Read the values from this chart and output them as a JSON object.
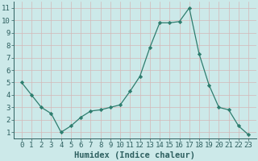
{
  "x": [
    0,
    1,
    2,
    3,
    4,
    5,
    6,
    7,
    8,
    9,
    10,
    11,
    12,
    13,
    14,
    15,
    16,
    17,
    18,
    19,
    20,
    21,
    22,
    23
  ],
  "y": [
    5.0,
    4.0,
    3.0,
    2.5,
    1.0,
    1.5,
    2.2,
    2.7,
    2.8,
    3.0,
    3.2,
    4.3,
    5.5,
    7.8,
    9.8,
    9.8,
    9.9,
    11.0,
    7.3,
    4.8,
    3.0,
    2.8,
    1.5,
    0.8
  ],
  "xlabel": "Humidex (Indice chaleur)",
  "ylim": [
    0.5,
    11.5
  ],
  "yticks": [
    1,
    2,
    3,
    4,
    5,
    6,
    7,
    8,
    9,
    10,
    11
  ],
  "xticks": [
    0,
    1,
    2,
    3,
    4,
    5,
    6,
    7,
    8,
    9,
    10,
    11,
    12,
    13,
    14,
    15,
    16,
    17,
    18,
    19,
    20,
    21,
    22,
    23
  ],
  "line_color": "#2e7d6e",
  "marker": "D",
  "marker_size": 2.2,
  "bg_color": "#cce9e9",
  "grid_color_major": "#b0c8c8",
  "grid_color_minor": "#d4b8b8",
  "xlabel_fontsize": 7.5,
  "tick_fontsize": 6.5
}
